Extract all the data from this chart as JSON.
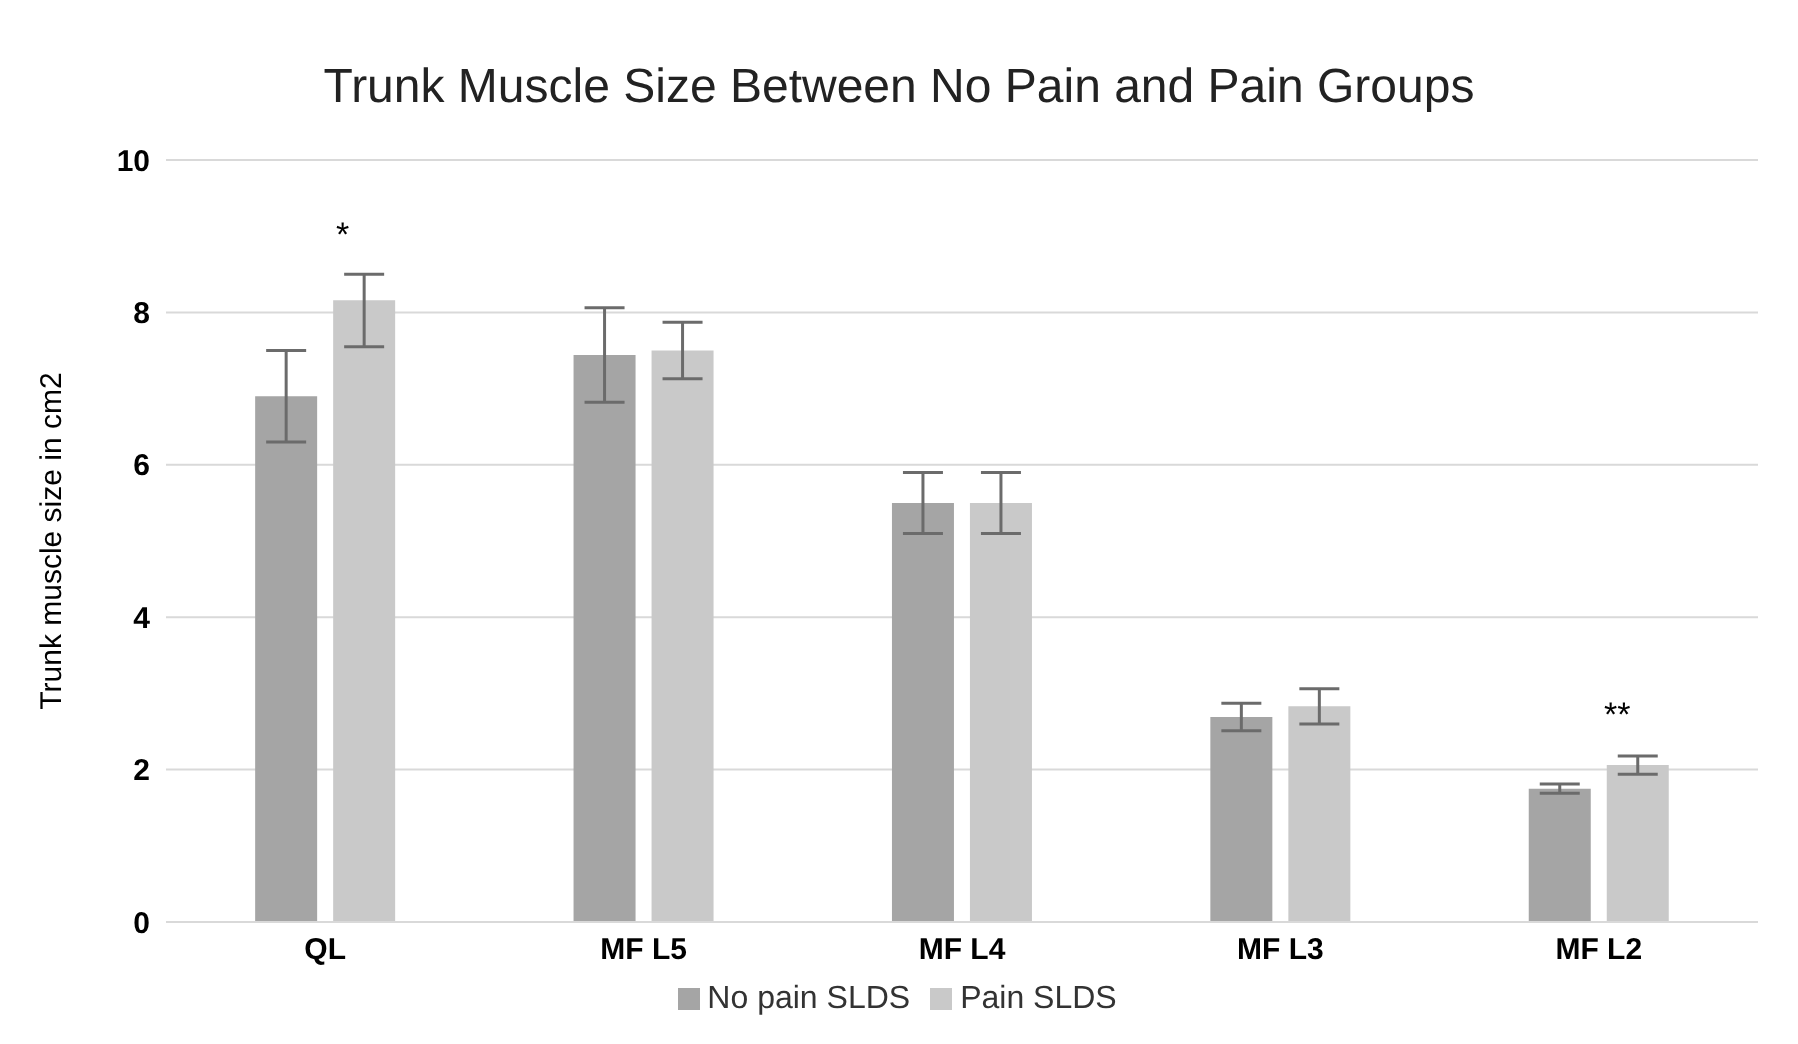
{
  "chart_data": {
    "type": "bar",
    "title": "Trunk Muscle Size Between No Pain and Pain Groups",
    "ylabel": "Trunk muscle size in cm2",
    "categories": [
      "QL",
      "MF L5",
      "MF L4",
      "MF L3",
      "MF L2"
    ],
    "series": [
      {
        "name": "No pain SLDS",
        "color": "#a5a5a5",
        "values": [
          6.9,
          7.44,
          5.5,
          2.69,
          1.75
        ],
        "errors": [
          0.6,
          0.62,
          0.4,
          0.18,
          0.06
        ]
      },
      {
        "name": "Pain SLDS",
        "color": "#c9c9c9",
        "values": [
          8.16,
          7.5,
          5.5,
          2.83,
          2.06
        ],
        "errors": [
          [
            7.55,
            8.5
          ],
          0.37,
          0.4,
          0.23,
          0.12
        ]
      }
    ],
    "ylim": [
      0,
      10
    ],
    "yticks": [
      0,
      2,
      4,
      6,
      8,
      10
    ],
    "grid": "y",
    "legend": "bottom",
    "annotations": [
      "*",
      "**"
    ]
  }
}
